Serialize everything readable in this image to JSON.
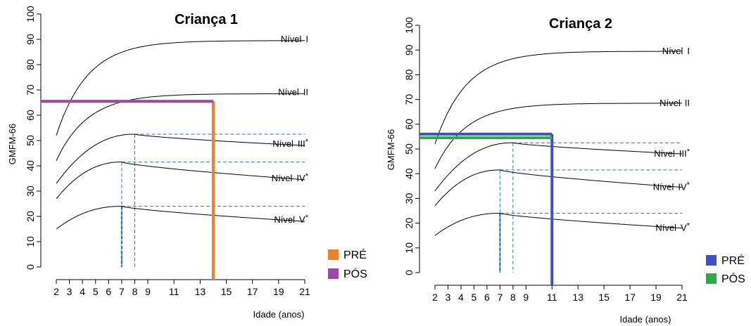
{
  "chart_data": [
    {
      "type": "line",
      "title": "Criança 1",
      "xlabel": "Idade (anos)",
      "ylabel": "GMFM-66",
      "xlim": [
        2,
        21
      ],
      "ylim": [
        0,
        100
      ],
      "x_ticks": [
        2,
        3,
        4,
        5,
        6,
        7,
        8,
        9,
        11,
        13,
        15,
        17,
        19,
        21
      ],
      "y_ticks": [
        0,
        10,
        20,
        30,
        40,
        50,
        60,
        70,
        80,
        90,
        100
      ],
      "series": [
        {
          "name": "Nível I",
          "label_main": "Nível",
          "label_roman": "I",
          "star": "",
          "kind": "limit",
          "start": 52,
          "limit": 89.5,
          "rate": 0.42
        },
        {
          "name": "Nível II",
          "label_main": "Nível",
          "label_roman": "II",
          "star": "",
          "kind": "limit",
          "start": 42,
          "limit": 68.5,
          "rate": 0.42
        },
        {
          "name": "Nível III*",
          "label_main": "Nível",
          "label_roman": "III",
          "star": "*",
          "kind": "peak",
          "start": 33,
          "peak": 52.5,
          "peak_age": 8,
          "end": 48
        },
        {
          "name": "Nível IV*",
          "label_main": "Nível",
          "label_roman": "IV",
          "star": "*",
          "kind": "peak",
          "start": 27,
          "peak": 41.5,
          "peak_age": 7,
          "end": 34.5
        },
        {
          "name": "Nível V*",
          "label_main": "Nível",
          "label_roman": "V",
          "star": "*",
          "kind": "peak",
          "start": 15,
          "peak": 24,
          "peak_age": 7,
          "end": 18
        }
      ],
      "measurements": [
        {
          "name": "PRÉ",
          "color": "#f07f2a",
          "score": 65.5,
          "age": 14
        },
        {
          "name": "PÓS",
          "color": "#9b4aa3",
          "score": 65.5,
          "age": null
        }
      ],
      "legend": [
        "PRÉ",
        "PÓS"
      ],
      "legend_position": "bottom-right"
    },
    {
      "type": "line",
      "title": "Criança 2",
      "xlabel": "Idade (anos)",
      "ylabel": "GMFM-66",
      "xlim": [
        2,
        21
      ],
      "ylim": [
        0,
        100
      ],
      "x_ticks": [
        2,
        3,
        4,
        5,
        6,
        7,
        8,
        9,
        11,
        13,
        15,
        17,
        19,
        21
      ],
      "y_ticks": [
        0,
        10,
        20,
        30,
        40,
        50,
        60,
        70,
        80,
        90,
        100
      ],
      "series": [
        {
          "name": "Nível I",
          "label_main": "Nível",
          "label_roman": "I",
          "star": "",
          "kind": "limit",
          "start": 52,
          "limit": 89.5,
          "rate": 0.42
        },
        {
          "name": "Nível II",
          "label_main": "Nível",
          "label_roman": "II",
          "star": "",
          "kind": "limit",
          "start": 42,
          "limit": 68.5,
          "rate": 0.42
        },
        {
          "name": "Nível III*",
          "label_main": "Nível",
          "label_roman": "III",
          "star": "*",
          "kind": "peak",
          "start": 33,
          "peak": 52.5,
          "peak_age": 8,
          "end": 48
        },
        {
          "name": "Nível IV*",
          "label_main": "Nível",
          "label_roman": "IV",
          "star": "*",
          "kind": "peak",
          "start": 27,
          "peak": 41.5,
          "peak_age": 7,
          "end": 34.5
        },
        {
          "name": "Nível V*",
          "label_main": "Nível",
          "label_roman": "V",
          "star": "*",
          "kind": "peak",
          "start": 15,
          "peak": 24,
          "peak_age": 7,
          "end": 18
        }
      ],
      "measurements": [
        {
          "name": "PRÉ",
          "color": "#3f4fc4",
          "score": 56,
          "age": 11
        },
        {
          "name": "PÓS",
          "color": "#2faa4a",
          "score": 54.5,
          "age": null
        }
      ],
      "legend": [
        "PRÉ",
        "PÓS"
      ],
      "legend_position": "bottom-right"
    }
  ]
}
